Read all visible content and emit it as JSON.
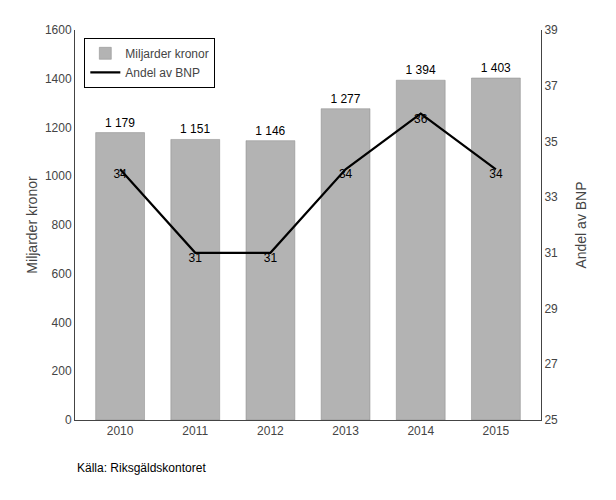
{
  "chart_data": {
    "type": "bar",
    "x": [
      2010,
      2011,
      2012,
      2013,
      2014,
      2015
    ],
    "xlim": [
      2009.4,
      2015.6
    ],
    "xticks": [
      2010,
      2011,
      2012,
      2013,
      2014,
      2015
    ],
    "ylabel": "Miljarder kronor",
    "y2label": "Andel av BNP",
    "ylim": [
      0,
      1600
    ],
    "yticks": [
      0,
      200,
      400,
      600,
      800,
      1000,
      1200,
      1400,
      1600
    ],
    "y2lim": [
      25,
      39
    ],
    "y2ticks": [
      25,
      27,
      29,
      31,
      33,
      35,
      37,
      39
    ],
    "series": [
      {
        "name": "Miljarder kronor",
        "type": "bar",
        "color": "#b3b3b3",
        "values": [
          1179,
          1151,
          1146,
          1277,
          1394,
          1403
        ],
        "value_labels": [
          "1 179",
          "1 151",
          "1 146",
          "1 277",
          "1 394",
          "1 403"
        ]
      },
      {
        "name": "Andel av BNP",
        "type": "line",
        "color": "#000000",
        "axis": "y2",
        "values": [
          34,
          31,
          31,
          34,
          36,
          34
        ]
      }
    ],
    "data_labels": true,
    "legend": "upper left",
    "grid": false,
    "annotations": [
      "Källa: Riksgäldskontoret"
    ]
  }
}
